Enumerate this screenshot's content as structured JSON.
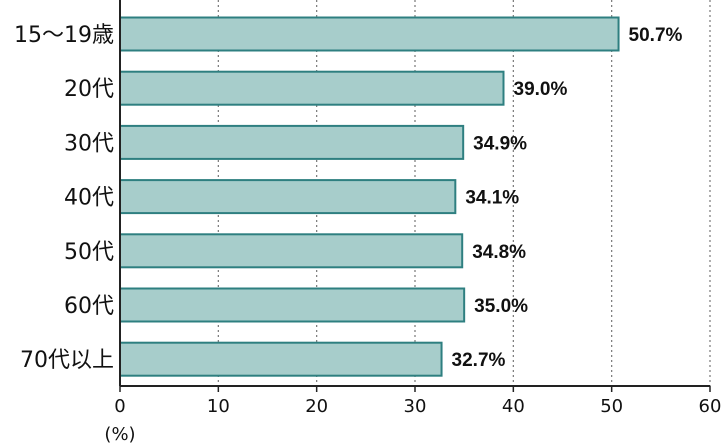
{
  "chart_data": {
    "type": "bar",
    "orientation": "horizontal",
    "categories": [
      "15〜19歳",
      "20代",
      "30代",
      "40代",
      "50代",
      "60代",
      "70代以上"
    ],
    "values": [
      50.7,
      39.0,
      34.9,
      34.1,
      34.8,
      35.0,
      32.7
    ],
    "value_labels": [
      "50.7%",
      "39.0%",
      "34.9%",
      "34.1%",
      "34.8%",
      "35.0%",
      "32.7%"
    ],
    "xlim": [
      0,
      60
    ],
    "x_ticks": [
      0,
      10,
      20,
      30,
      40,
      50,
      60
    ],
    "x_tick_labels": [
      "0",
      "10",
      "20",
      "30",
      "40",
      "50",
      "60"
    ],
    "x_unit": "(%)",
    "grid": "vertical dotted",
    "colors": {
      "bar_fill": "#a7cdcb",
      "bar_stroke": "#2e7f80",
      "axis": "#222222",
      "grid": "#777777"
    }
  }
}
